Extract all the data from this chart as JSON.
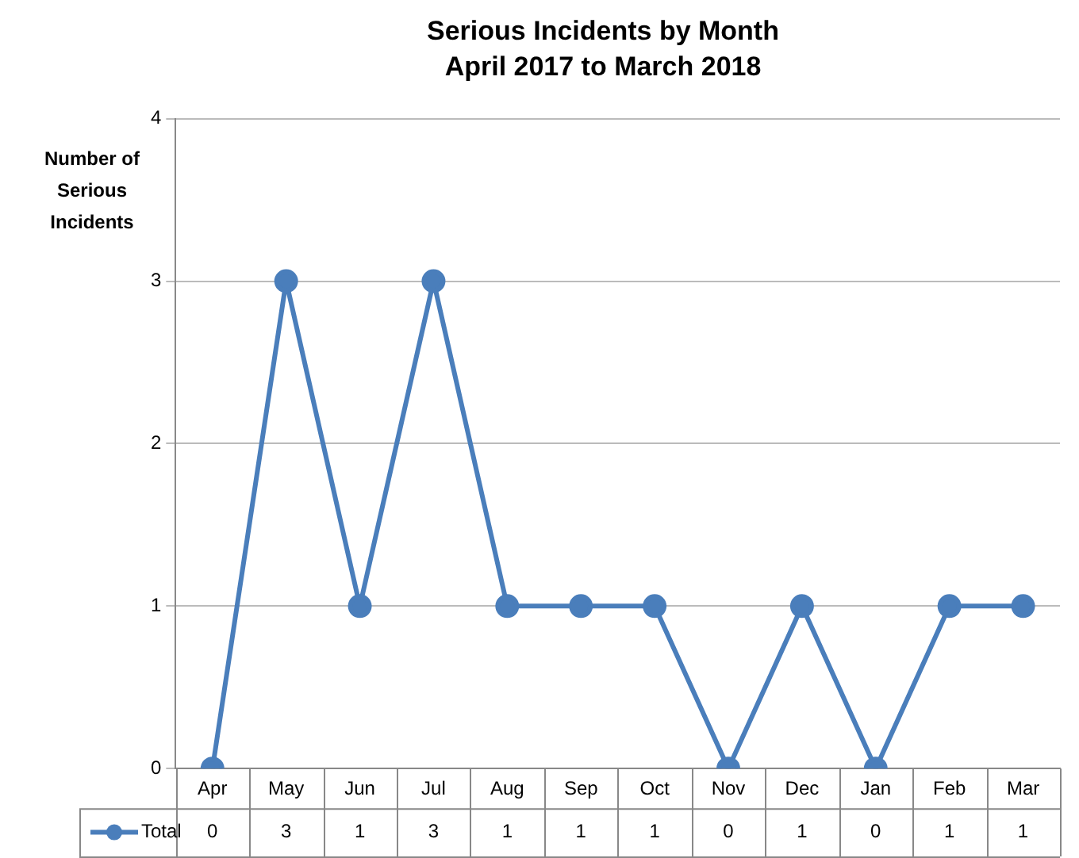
{
  "chart_data": {
    "type": "line",
    "title": "Serious Incidents by Month",
    "subtitle": "April 2017 to March 2018",
    "ylabel": "Number of Serious Incidents",
    "categories": [
      "Apr",
      "May",
      "Jun",
      "Jul",
      "Aug",
      "Sep",
      "Oct",
      "Nov",
      "Dec",
      "Jan",
      "Feb",
      "Mar"
    ],
    "series": [
      {
        "name": "Total",
        "color": "#4a7ebb",
        "values": [
          0,
          3,
          1,
          3,
          1,
          1,
          1,
          0,
          1,
          0,
          1,
          1
        ]
      }
    ],
    "ylim": [
      0,
      4
    ],
    "yticks": [
      0,
      1,
      2,
      3,
      4
    ],
    "grid": "y",
    "marker": "circle",
    "line_style": "solid",
    "legend": "bottom",
    "data_labels": true
  }
}
